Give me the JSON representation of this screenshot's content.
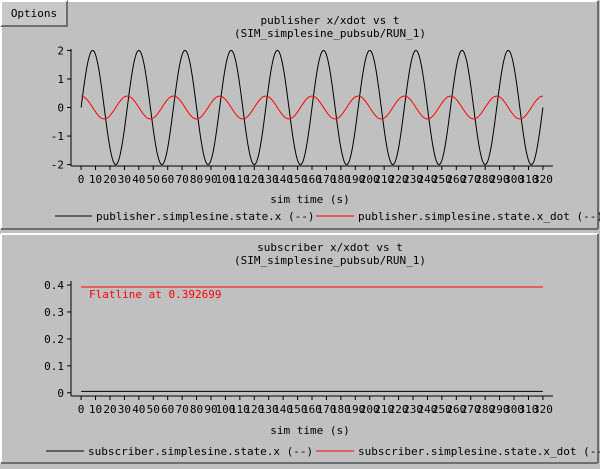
{
  "menu": {
    "options_label": "Options"
  },
  "colors": {
    "series_black": "#000000",
    "series_red": "#ff0000",
    "panel_bg": "#c0c0c0"
  },
  "chart_data": [
    {
      "type": "line",
      "title": "publisher x/xdot vs t",
      "subtitle": "(SIM_simplesine_pubsub/RUN_1)",
      "xlabel": "sim time (s)",
      "ylabel": "",
      "xlim": [
        -7,
        327
      ],
      "ylim": [
        -2.05,
        2.05
      ],
      "xticks": [
        "0",
        "10",
        "20",
        "30",
        "40",
        "50",
        "60",
        "70",
        "80",
        "90",
        "100",
        "110",
        "120",
        "130",
        "140",
        "150",
        "160",
        "170",
        "180",
        "190",
        "200",
        "210",
        "220",
        "230",
        "240",
        "250",
        "260",
        "270",
        "280",
        "290",
        "300",
        "310",
        "320"
      ],
      "xtick_values": [
        0,
        10,
        20,
        30,
        40,
        50,
        60,
        70,
        80,
        90,
        100,
        110,
        120,
        130,
        140,
        150,
        160,
        170,
        180,
        190,
        200,
        210,
        220,
        230,
        240,
        250,
        260,
        270,
        280,
        290,
        300,
        310,
        320
      ],
      "yticks": [
        "-2",
        "-1",
        "0",
        "1",
        "2"
      ],
      "ytick_values": [
        -2,
        -1,
        0,
        1,
        2
      ],
      "grid": false,
      "legend_position": "bottom",
      "series": [
        {
          "name": "publisher.simplesine.state.x (--)",
          "color": "#000000",
          "function": "sine",
          "amplitude": 2,
          "period": 32,
          "phase_deg": 0,
          "x_range": [
            0,
            320
          ]
        },
        {
          "name": "publisher.simplesine.state.x_dot (--)",
          "color": "#ff0000",
          "function": "sine",
          "amplitude": 0.4,
          "period": 32,
          "phase_deg": 90,
          "x_range": [
            0,
            320
          ]
        }
      ]
    },
    {
      "type": "line",
      "title": "subscriber x/xdot vs t",
      "subtitle": "(SIM_simplesine_pubsub/RUN_1)",
      "xlabel": "sim time (s)",
      "ylabel": "",
      "xlim": [
        -7,
        327
      ],
      "ylim": [
        -0.012,
        0.415
      ],
      "xticks": [
        "0",
        "10",
        "20",
        "30",
        "40",
        "50",
        "60",
        "70",
        "80",
        "90",
        "100",
        "110",
        "120",
        "130",
        "140",
        "150",
        "160",
        "170",
        "180",
        "190",
        "200",
        "210",
        "220",
        "230",
        "240",
        "250",
        "260",
        "270",
        "280",
        "290",
        "300",
        "310",
        "320"
      ],
      "xtick_values": [
        0,
        10,
        20,
        30,
        40,
        50,
        60,
        70,
        80,
        90,
        100,
        110,
        120,
        130,
        140,
        150,
        160,
        170,
        180,
        190,
        200,
        210,
        220,
        230,
        240,
        250,
        260,
        270,
        280,
        290,
        300,
        310,
        320
      ],
      "yticks": [
        "0",
        "0.1",
        "0.2",
        "0.3",
        "0.4"
      ],
      "ytick_values": [
        0,
        0.1,
        0.2,
        0.3,
        0.4
      ],
      "grid": false,
      "legend_position": "bottom",
      "annotation": {
        "text": "Flatline at 0.392699",
        "x": 2,
        "y": 0.36,
        "color": "#ff0000"
      },
      "series": [
        {
          "name": "subscriber.simplesine.state.x (--)",
          "color": "#000000",
          "function": "constant",
          "value": 0.005,
          "x_range": [
            0,
            320
          ]
        },
        {
          "name": "subscriber.simplesine.state.x_dot (--)",
          "color": "#ff0000",
          "function": "constant",
          "value": 0.392699,
          "x_range": [
            0,
            320
          ]
        }
      ]
    }
  ]
}
